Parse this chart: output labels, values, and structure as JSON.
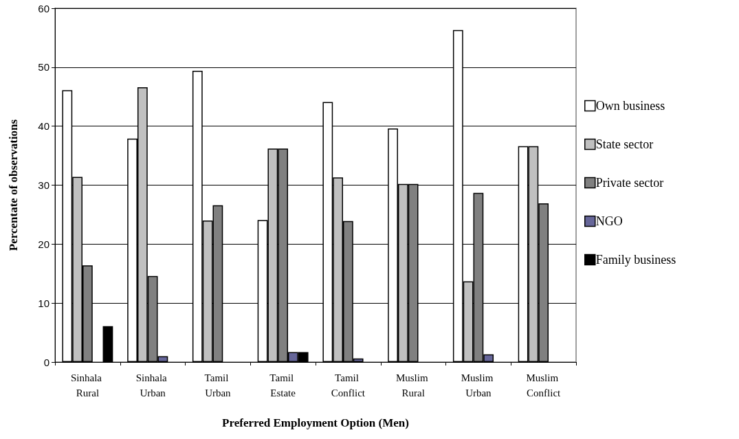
{
  "chart_data": {
    "type": "bar",
    "xlabel": "Preferred Employment Option (Men)",
    "ylabel": "Percentate of observations",
    "categories": [
      "Sinhala Rural",
      "Sinhala Urban",
      "Tamil Urban",
      "Tamil Estate",
      "Tamil Conflict",
      "Muslim Rural",
      "Muslim Urban",
      "Muslim Conflict"
    ],
    "series": [
      {
        "name": "Own business",
        "color": "#ffffff",
        "values": [
          46.1,
          37.9,
          49.4,
          24.1,
          44.1,
          39.6,
          56.3,
          36.6
        ]
      },
      {
        "name": "State sector",
        "color": "#c0c0c0",
        "values": [
          31.4,
          46.6,
          24.0,
          36.2,
          31.3,
          30.2,
          13.7,
          36.6
        ]
      },
      {
        "name": "Private sector",
        "color": "#808080",
        "values": [
          16.4,
          14.6,
          26.6,
          36.2,
          23.9,
          30.2,
          28.7,
          26.9
        ]
      },
      {
        "name": "NGO",
        "color": "#666699",
        "values": [
          null,
          1.0,
          null,
          1.7,
          0.6,
          null,
          1.3,
          null
        ]
      },
      {
        "name": "Family business",
        "color": "#000000",
        "values": [
          6.1,
          null,
          null,
          1.7,
          null,
          null,
          null,
          null
        ]
      }
    ],
    "ylim": [
      0,
      60
    ],
    "yticks": [
      0,
      10,
      20,
      30,
      40,
      50,
      60
    ],
    "grid": "y",
    "legend": "right"
  }
}
